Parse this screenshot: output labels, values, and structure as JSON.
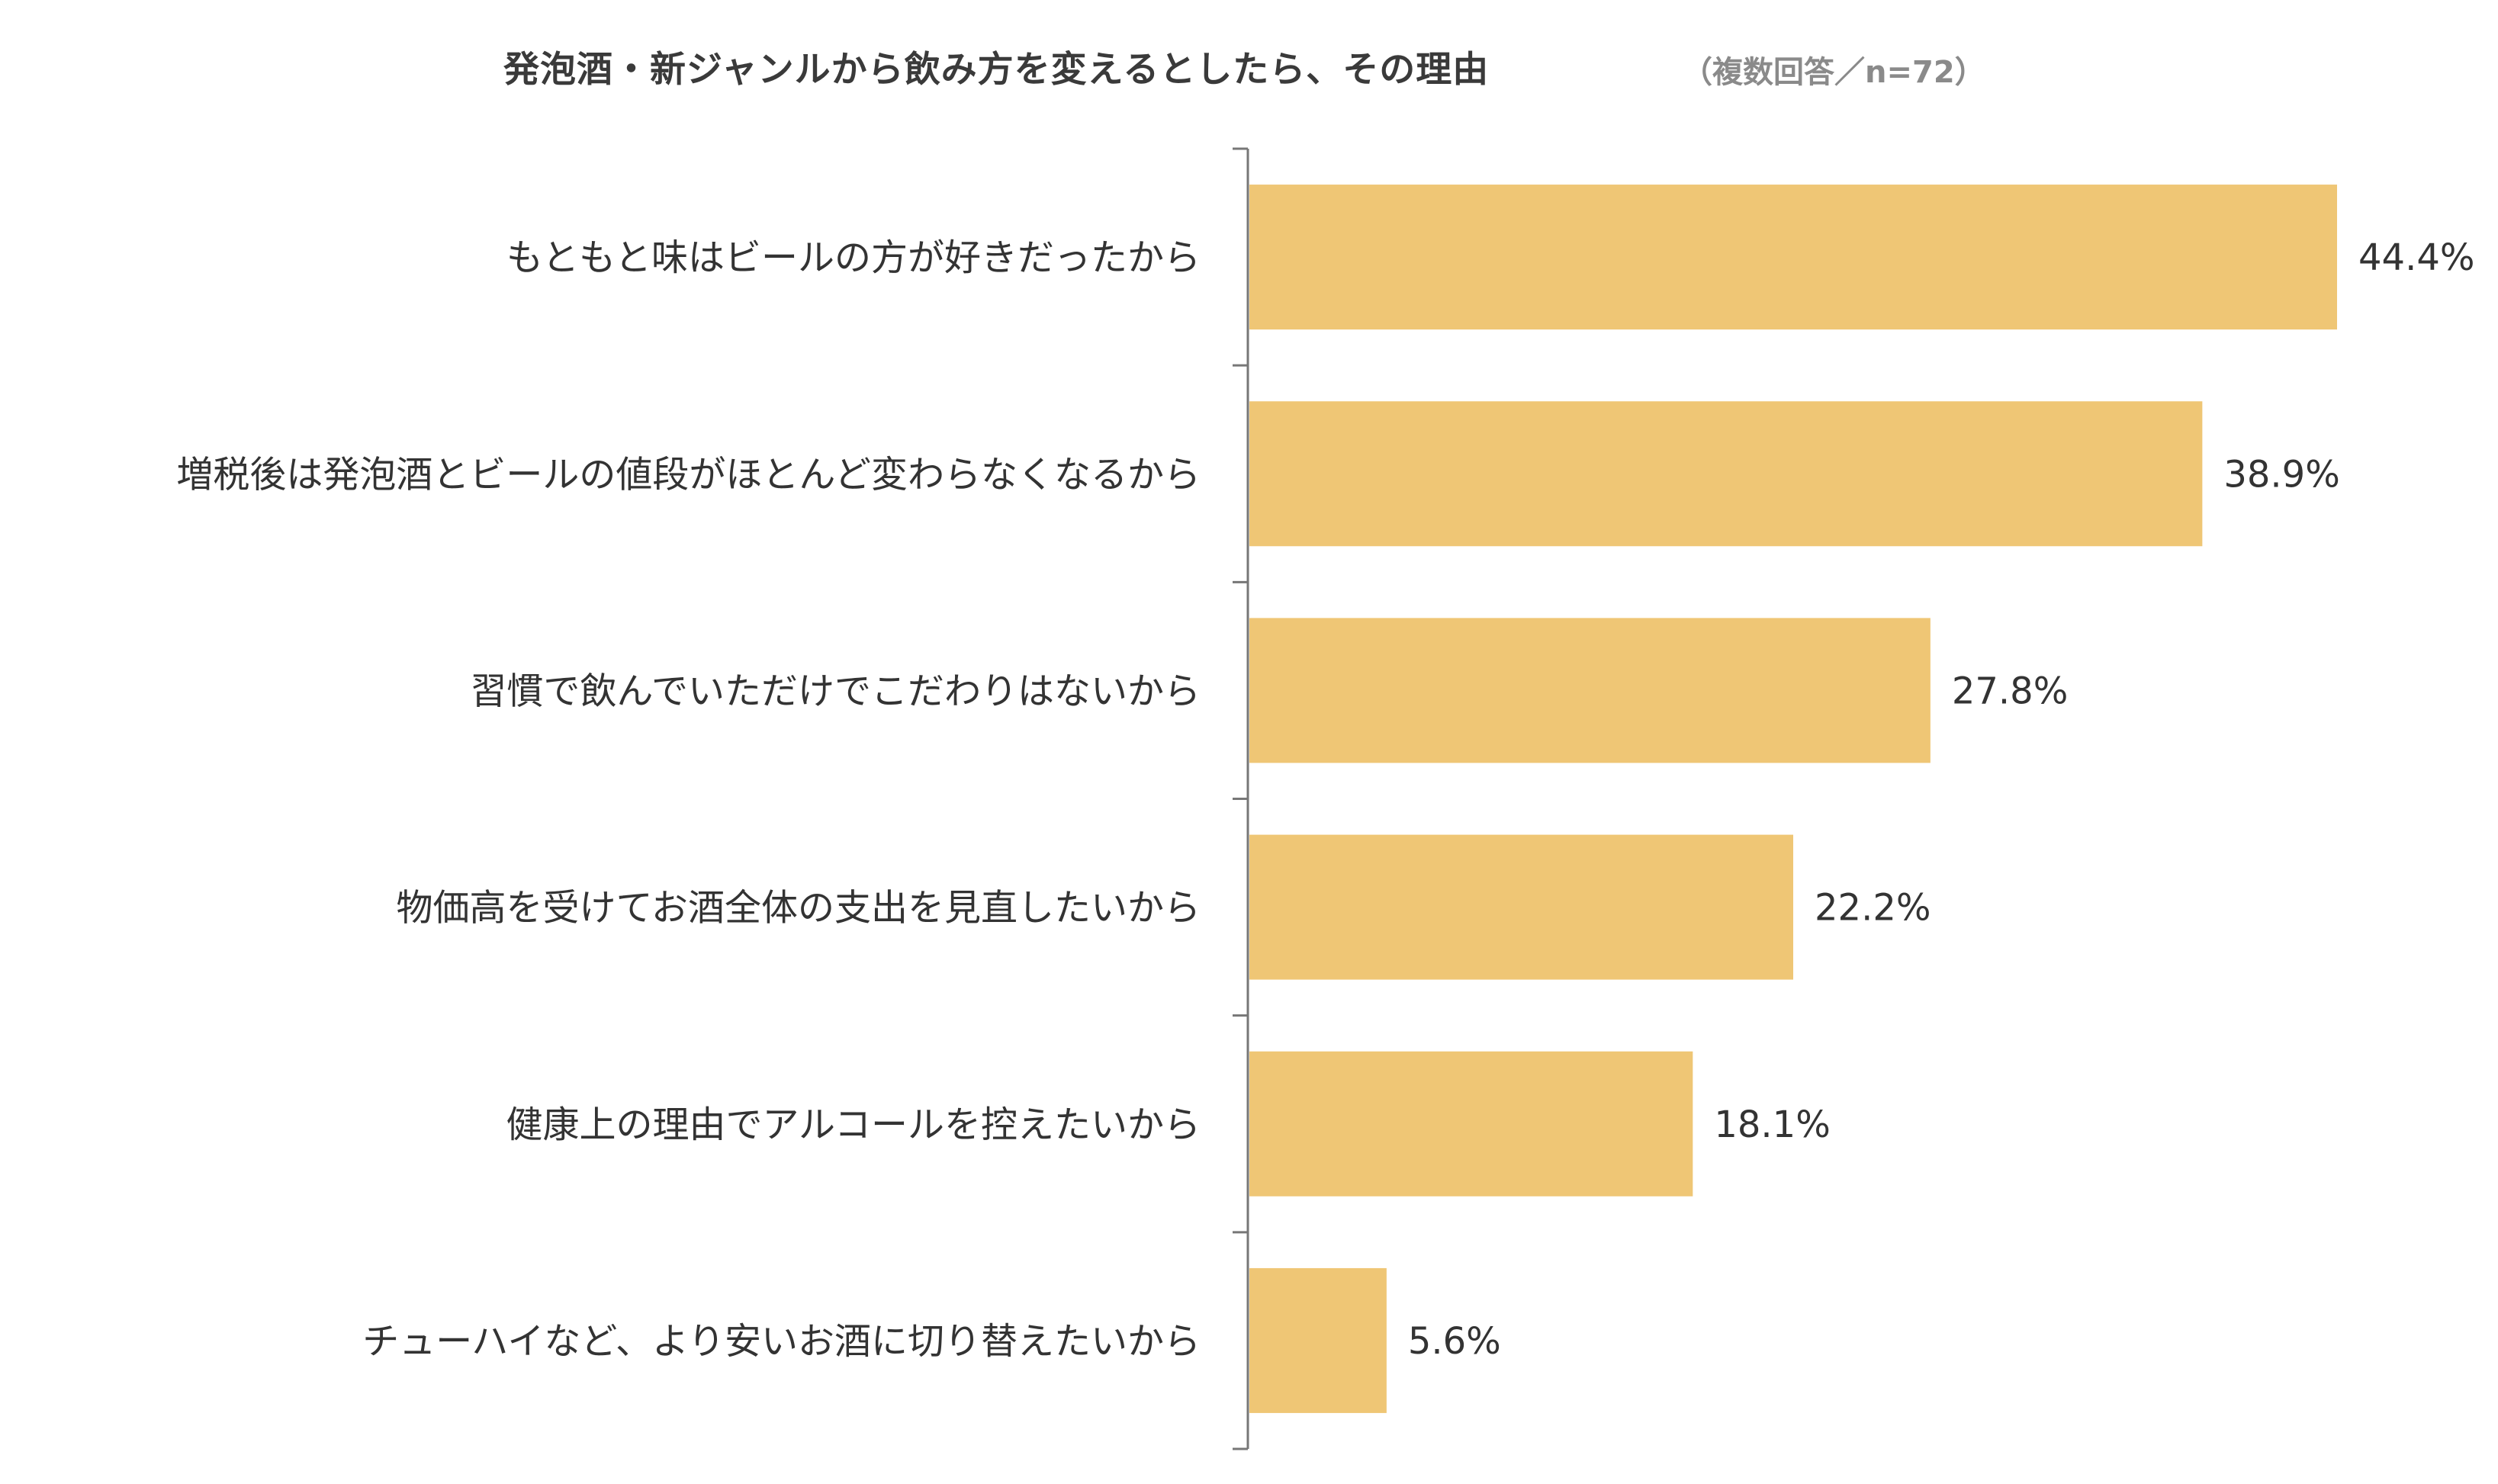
{
  "chart_data": {
    "type": "bar",
    "orientation": "horizontal",
    "title": "発泡酒・新ジャンルから飲み方を変えるとしたら、その理由",
    "subtitle": "（複数回答／n=72）",
    "categories": [
      "もともと味はビールの方が好きだったから",
      "増税後は発泡酒とビールの値段がほとんど変わらなくなるから",
      "習慣で飲んでいただけでこだわりはないから",
      "物価高を受けてお酒全体の支出を見直したいから",
      "健康上の理由でアルコールを控えたいから",
      "チューハイなど、より安いお酒に切り替えたいから"
    ],
    "values": [
      44.4,
      38.9,
      27.8,
      22.2,
      18.1,
      5.6
    ],
    "value_labels": [
      "44.4%",
      "38.9%",
      "27.8%",
      "22.2%",
      "18.1%",
      "5.6%"
    ],
    "unit": "%",
    "xlim": [
      0,
      50
    ],
    "grid": false,
    "legend": "none",
    "bar_color": "#EFC675",
    "axis_color": "#777777"
  }
}
